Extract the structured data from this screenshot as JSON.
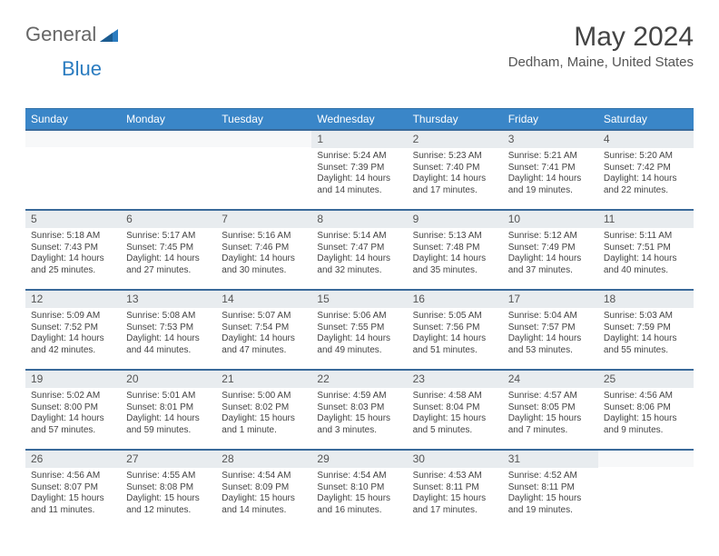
{
  "brand": {
    "text1": "General",
    "text2": "Blue"
  },
  "title": "May 2024",
  "location": "Dedham, Maine, United States",
  "colors": {
    "header_bg": "#3a86c8",
    "header_text": "#ffffff",
    "week_border": "#3a6a9a",
    "daybar_bg": "#e8ecef",
    "page_bg": "#ffffff",
    "text": "#444444",
    "brand_blue": "#2b7cc0"
  },
  "dayNames": [
    "Sunday",
    "Monday",
    "Tuesday",
    "Wednesday",
    "Thursday",
    "Friday",
    "Saturday"
  ],
  "weeks": [
    [
      {
        "blank": true
      },
      {
        "blank": true
      },
      {
        "blank": true
      },
      {
        "num": "1",
        "sunrise": "5:24 AM",
        "sunset": "7:39 PM",
        "daylight": "14 hours and 14 minutes."
      },
      {
        "num": "2",
        "sunrise": "5:23 AM",
        "sunset": "7:40 PM",
        "daylight": "14 hours and 17 minutes."
      },
      {
        "num": "3",
        "sunrise": "5:21 AM",
        "sunset": "7:41 PM",
        "daylight": "14 hours and 19 minutes."
      },
      {
        "num": "4",
        "sunrise": "5:20 AM",
        "sunset": "7:42 PM",
        "daylight": "14 hours and 22 minutes."
      }
    ],
    [
      {
        "num": "5",
        "sunrise": "5:18 AM",
        "sunset": "7:43 PM",
        "daylight": "14 hours and 25 minutes."
      },
      {
        "num": "6",
        "sunrise": "5:17 AM",
        "sunset": "7:45 PM",
        "daylight": "14 hours and 27 minutes."
      },
      {
        "num": "7",
        "sunrise": "5:16 AM",
        "sunset": "7:46 PM",
        "daylight": "14 hours and 30 minutes."
      },
      {
        "num": "8",
        "sunrise": "5:14 AM",
        "sunset": "7:47 PM",
        "daylight": "14 hours and 32 minutes."
      },
      {
        "num": "9",
        "sunrise": "5:13 AM",
        "sunset": "7:48 PM",
        "daylight": "14 hours and 35 minutes."
      },
      {
        "num": "10",
        "sunrise": "5:12 AM",
        "sunset": "7:49 PM",
        "daylight": "14 hours and 37 minutes."
      },
      {
        "num": "11",
        "sunrise": "5:11 AM",
        "sunset": "7:51 PM",
        "daylight": "14 hours and 40 minutes."
      }
    ],
    [
      {
        "num": "12",
        "sunrise": "5:09 AM",
        "sunset": "7:52 PM",
        "daylight": "14 hours and 42 minutes."
      },
      {
        "num": "13",
        "sunrise": "5:08 AM",
        "sunset": "7:53 PM",
        "daylight": "14 hours and 44 minutes."
      },
      {
        "num": "14",
        "sunrise": "5:07 AM",
        "sunset": "7:54 PM",
        "daylight": "14 hours and 47 minutes."
      },
      {
        "num": "15",
        "sunrise": "5:06 AM",
        "sunset": "7:55 PM",
        "daylight": "14 hours and 49 minutes."
      },
      {
        "num": "16",
        "sunrise": "5:05 AM",
        "sunset": "7:56 PM",
        "daylight": "14 hours and 51 minutes."
      },
      {
        "num": "17",
        "sunrise": "5:04 AM",
        "sunset": "7:57 PM",
        "daylight": "14 hours and 53 minutes."
      },
      {
        "num": "18",
        "sunrise": "5:03 AM",
        "sunset": "7:59 PM",
        "daylight": "14 hours and 55 minutes."
      }
    ],
    [
      {
        "num": "19",
        "sunrise": "5:02 AM",
        "sunset": "8:00 PM",
        "daylight": "14 hours and 57 minutes."
      },
      {
        "num": "20",
        "sunrise": "5:01 AM",
        "sunset": "8:01 PM",
        "daylight": "14 hours and 59 minutes."
      },
      {
        "num": "21",
        "sunrise": "5:00 AM",
        "sunset": "8:02 PM",
        "daylight": "15 hours and 1 minute."
      },
      {
        "num": "22",
        "sunrise": "4:59 AM",
        "sunset": "8:03 PM",
        "daylight": "15 hours and 3 minutes."
      },
      {
        "num": "23",
        "sunrise": "4:58 AM",
        "sunset": "8:04 PM",
        "daylight": "15 hours and 5 minutes."
      },
      {
        "num": "24",
        "sunrise": "4:57 AM",
        "sunset": "8:05 PM",
        "daylight": "15 hours and 7 minutes."
      },
      {
        "num": "25",
        "sunrise": "4:56 AM",
        "sunset": "8:06 PM",
        "daylight": "15 hours and 9 minutes."
      }
    ],
    [
      {
        "num": "26",
        "sunrise": "4:56 AM",
        "sunset": "8:07 PM",
        "daylight": "15 hours and 11 minutes."
      },
      {
        "num": "27",
        "sunrise": "4:55 AM",
        "sunset": "8:08 PM",
        "daylight": "15 hours and 12 minutes."
      },
      {
        "num": "28",
        "sunrise": "4:54 AM",
        "sunset": "8:09 PM",
        "daylight": "15 hours and 14 minutes."
      },
      {
        "num": "29",
        "sunrise": "4:54 AM",
        "sunset": "8:10 PM",
        "daylight": "15 hours and 16 minutes."
      },
      {
        "num": "30",
        "sunrise": "4:53 AM",
        "sunset": "8:11 PM",
        "daylight": "15 hours and 17 minutes."
      },
      {
        "num": "31",
        "sunrise": "4:52 AM",
        "sunset": "8:11 PM",
        "daylight": "15 hours and 19 minutes."
      },
      {
        "blank": true
      }
    ]
  ],
  "labels": {
    "sunrise": "Sunrise:",
    "sunset": "Sunset:",
    "daylight": "Daylight:"
  }
}
